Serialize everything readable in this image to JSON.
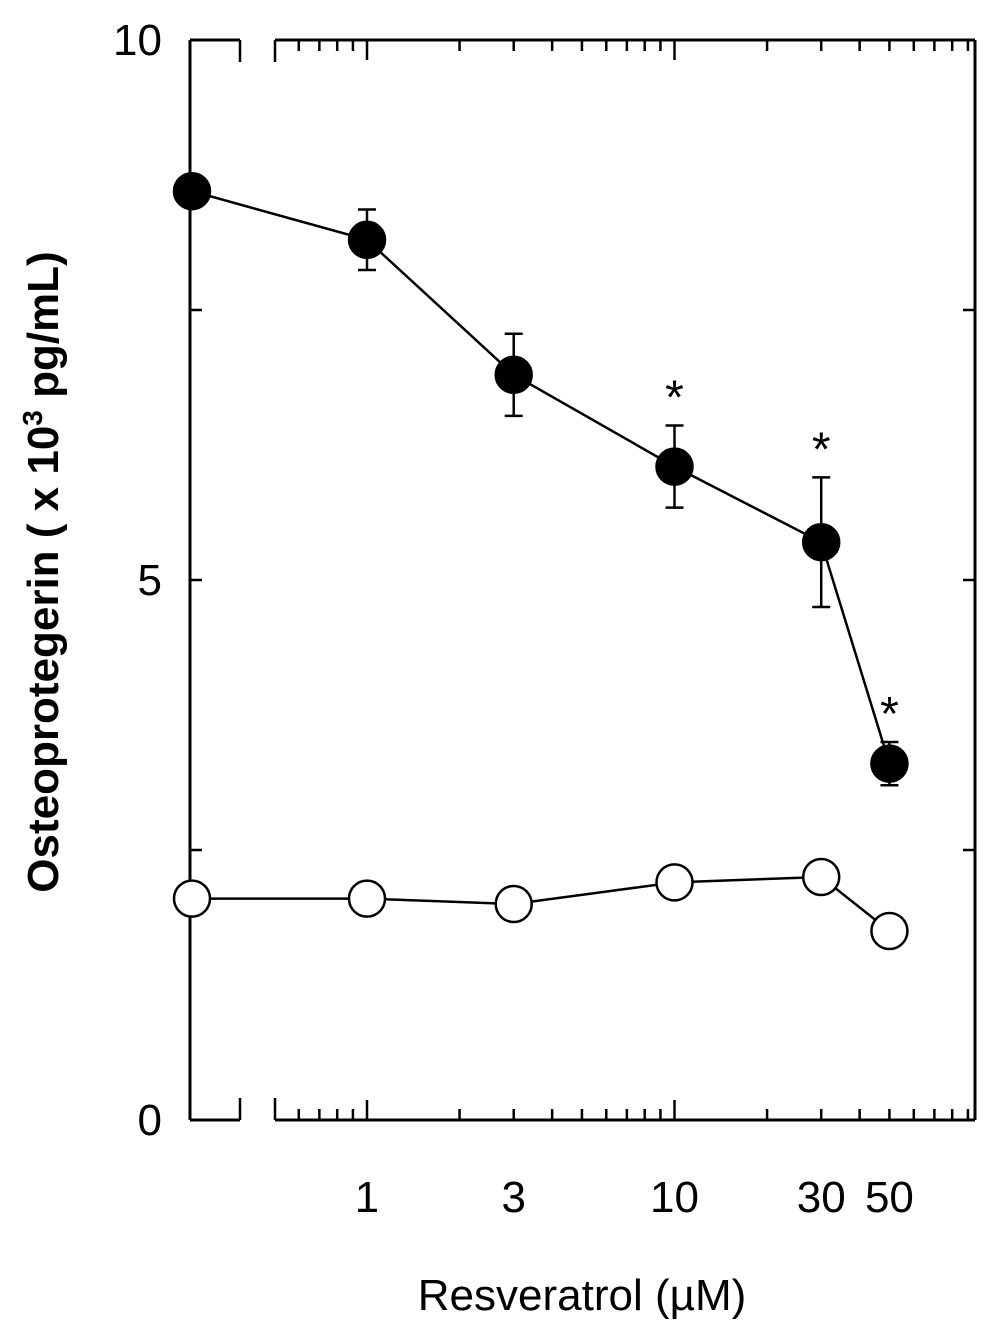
{
  "chart_data": {
    "type": "line",
    "xlabel": "Resveratrol (µM)",
    "ylabel_main": "Osteoprotegerin ( x 10",
    "ylabel_sup": "3",
    "ylabel_unit": " pg/mL)",
    "x_scale": "log",
    "x_axis_break": true,
    "ylim": [
      0,
      10
    ],
    "y_ticks": [
      0,
      5,
      10
    ],
    "y_tick_labels": [
      "0",
      "5",
      "10"
    ],
    "x_tick_labels": [
      "1",
      "3",
      "10",
      "30",
      "50"
    ],
    "x_tick_values": [
      1,
      3,
      10,
      30,
      50
    ],
    "control_label_x": 0,
    "series": [
      {
        "marker": "filled-circle",
        "color": "#000000",
        "points": [
          {
            "x": 0,
            "y": 8.6
          },
          {
            "x": 1,
            "y": 8.15,
            "err": 0.28
          },
          {
            "x": 3,
            "y": 6.9,
            "err": 0.38
          },
          {
            "x": 10,
            "y": 6.05,
            "err": 0.38,
            "sig": "*"
          },
          {
            "x": 30,
            "y": 5.35,
            "err": 0.6,
            "sig": "*"
          },
          {
            "x": 50,
            "y": 3.3,
            "err": 0.2,
            "sig": "*"
          }
        ]
      },
      {
        "marker": "open-circle",
        "color": "#000000",
        "points": [
          {
            "x": 0,
            "y": 2.05
          },
          {
            "x": 1,
            "y": 2.05
          },
          {
            "x": 3,
            "y": 2.0
          },
          {
            "x": 10,
            "y": 2.2
          },
          {
            "x": 30,
            "y": 2.25
          },
          {
            "x": 50,
            "y": 1.75
          }
        ]
      }
    ]
  }
}
